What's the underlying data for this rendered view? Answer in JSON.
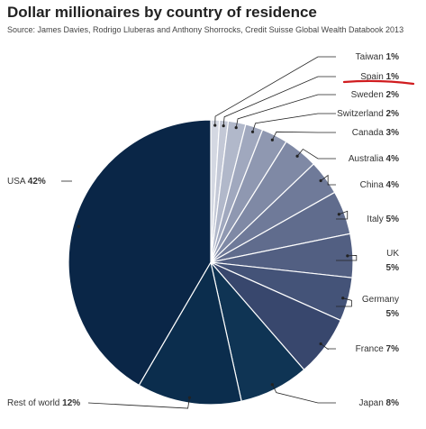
{
  "title": "Dollar millionaires by country of residence",
  "source": "Source: James Davies, Rodrigo Lluberas and Anthony Shorrocks, Credit Suisse Global Wealth Databook 2013",
  "chart_data": {
    "type": "pie",
    "title": "Dollar millionaires by country of residence",
    "unit": "%",
    "slices": [
      {
        "label": "Taiwan",
        "value": 1,
        "display": "1%",
        "color": "#d4d8e2"
      },
      {
        "label": "Spain",
        "value": 1,
        "display": "1%",
        "color": "#c3c8d6"
      },
      {
        "label": "Sweden",
        "value": 2,
        "display": "2%",
        "color": "#b1b8ca"
      },
      {
        "label": "Switzerland",
        "value": 2,
        "display": "2%",
        "color": "#a0a8be"
      },
      {
        "label": "Canada",
        "value": 3,
        "display": "3%",
        "color": "#8f98b1"
      },
      {
        "label": "Australia",
        "value": 4,
        "display": "4%",
        "color": "#7f89a5"
      },
      {
        "label": "China",
        "value": 4,
        "display": "4%",
        "color": "#6f7a99"
      },
      {
        "label": "Italy",
        "value": 5,
        "display": "5%",
        "color": "#606c8d"
      },
      {
        "label": "UK",
        "value": 5,
        "display": "5%",
        "color": "#525f82"
      },
      {
        "label": "Germany",
        "value": 5,
        "display": "5%",
        "color": "#445378"
      },
      {
        "label": "France",
        "value": 7,
        "display": "7%",
        "color": "#38476d"
      },
      {
        "label": "Japan",
        "value": 8,
        "display": "8%",
        "color": "#0f3454"
      },
      {
        "label": "Rest of world",
        "value": 12,
        "display": "12%",
        "color": "#0b2d4d"
      },
      {
        "label": "USA",
        "value": 42,
        "display": "42%",
        "color": "#0a2647"
      }
    ],
    "annotation": {
      "type": "red-underline",
      "target": "Spain",
      "color": "#d01c1f"
    }
  }
}
